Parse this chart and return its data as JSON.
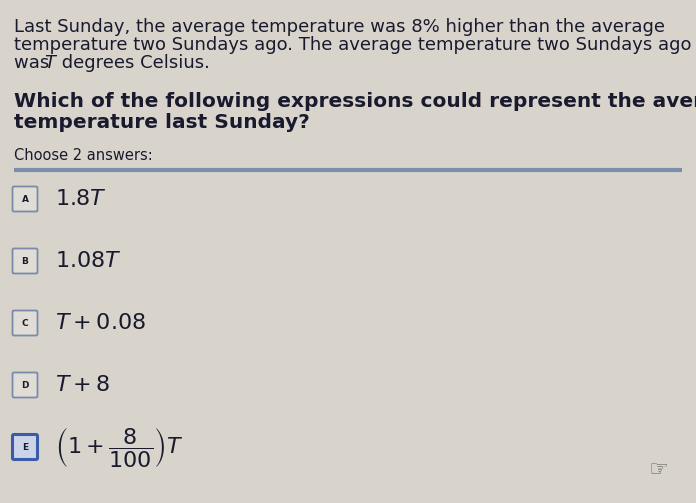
{
  "bg_color": "#d8d4cc",
  "text_color": "#1a1a2e",
  "title_line1": "Last Sunday, the average temperature was 8% higher than the average",
  "title_line2": "temperature two Sundays ago. The average temperature two Sundays ago",
  "title_line3_pre": "was ",
  "title_line3_T": "T",
  "title_line3_post": " degrees Celsius.",
  "question_line1": "Which of the following expressions could represent the average",
  "question_line2": "temperature last Sunday?",
  "choose_text": "Choose 2 answers:",
  "separator_color": "#7a8fb0",
  "box_border_normal": "#7a8aaa",
  "box_border_selected": "#3a5aaa",
  "box_fill_normal": "#e0ddd6",
  "box_fill_selected": "#ccd4e8",
  "title_fontsize": 13.0,
  "question_fontsize": 14.5,
  "choose_fontsize": 10.5,
  "option_fontsize": 16,
  "label_fontsize": 6.5,
  "hand_icon": "☞"
}
